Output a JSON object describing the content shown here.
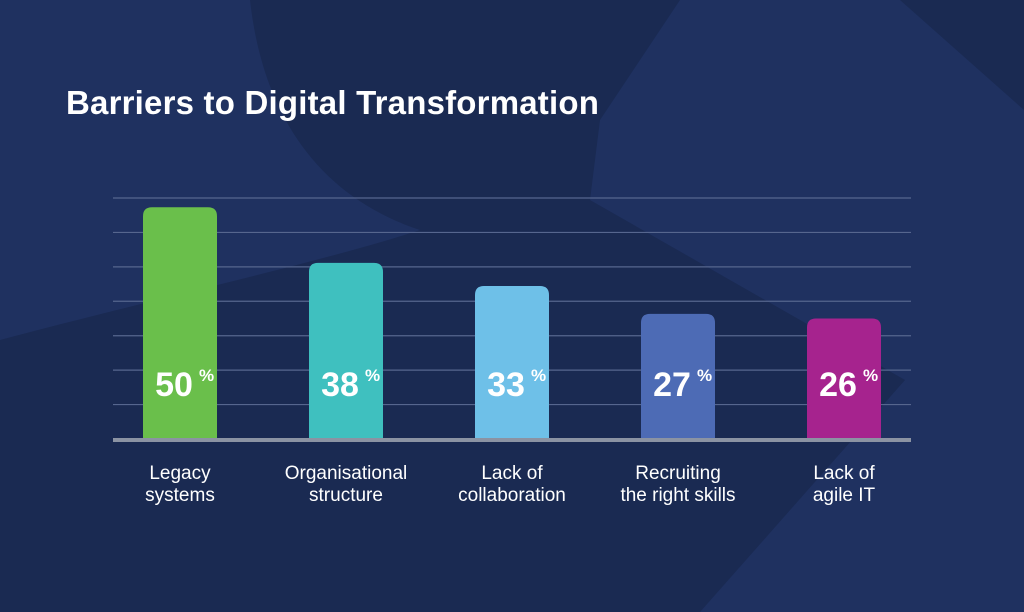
{
  "chart_data": {
    "type": "bar",
    "title": "Barriers to Digital Transformation",
    "categories": [
      [
        "Legacy",
        "systems"
      ],
      [
        "Organisational",
        "structure"
      ],
      [
        "Lack of",
        "collaboration"
      ],
      [
        "Recruiting",
        "the right skills"
      ],
      [
        "Lack of",
        "agile IT"
      ]
    ],
    "values": [
      50,
      38,
      33,
      27,
      26
    ],
    "value_labels": [
      "50",
      "38",
      "33",
      "27",
      "26"
    ],
    "unit_symbol": "%",
    "colors": [
      "#6abf4b",
      "#3fc0bf",
      "#6ec0e8",
      "#4d6bb5",
      "#a6238e"
    ],
    "ylim": [
      0,
      52
    ],
    "grid": true
  },
  "background": {
    "base_color": "#1a2a52",
    "shape_color": "#1f3160"
  },
  "baseline_color": "#8b93a3",
  "grid_color": "#56668e"
}
